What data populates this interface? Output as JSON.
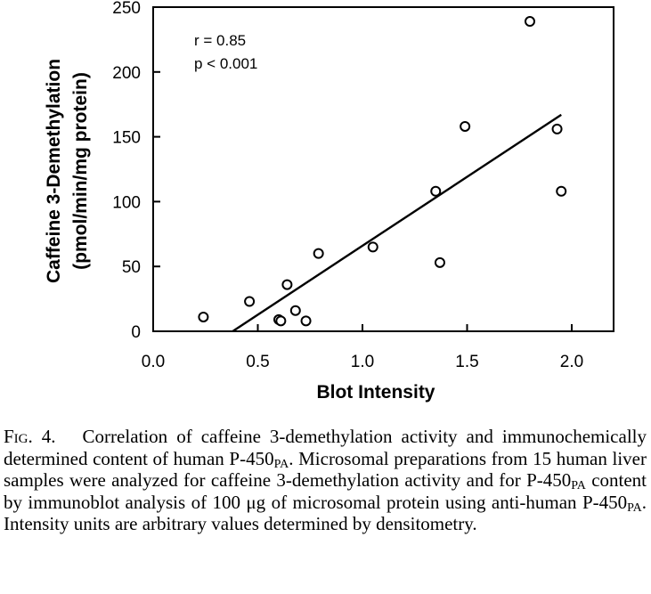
{
  "chart_data": {
    "type": "scatter",
    "xlabel": "Blot Intensity",
    "ylabel": [
      "Caffeine 3-Demethylation",
      "(pmol/min/mg protein)"
    ],
    "xlim": [
      0.0,
      2.2
    ],
    "ylim": [
      0,
      250
    ],
    "x_ticks": [
      "0.0",
      "0.5",
      "1.0",
      "1.5",
      "2.0"
    ],
    "x_tick_values": [
      0.0,
      0.5,
      1.0,
      1.5,
      2.0
    ],
    "y_ticks": [
      "0",
      "50",
      "100",
      "150",
      "200",
      "250"
    ],
    "y_tick_values": [
      0,
      50,
      100,
      150,
      200,
      250
    ],
    "grid": false,
    "marker": "open-circle",
    "points": [
      {
        "x": 0.24,
        "y": 11
      },
      {
        "x": 0.46,
        "y": 23
      },
      {
        "x": 0.6,
        "y": 9
      },
      {
        "x": 0.61,
        "y": 8
      },
      {
        "x": 0.64,
        "y": 36
      },
      {
        "x": 0.68,
        "y": 16
      },
      {
        "x": 0.73,
        "y": 8
      },
      {
        "x": 0.79,
        "y": 60
      },
      {
        "x": 1.05,
        "y": 65
      },
      {
        "x": 1.35,
        "y": 108
      },
      {
        "x": 1.37,
        "y": 53
      },
      {
        "x": 1.49,
        "y": 158
      },
      {
        "x": 1.8,
        "y": 239
      },
      {
        "x": 1.93,
        "y": 156
      },
      {
        "x": 1.95,
        "y": 108
      }
    ],
    "regression_line": {
      "x": [
        0.38,
        1.95
      ],
      "y": [
        0,
        167
      ]
    },
    "annotations": [
      "r =  0.85",
      "p < 0.001"
    ]
  },
  "caption": {
    "label": "Fig. 4.",
    "parts": [
      "Correlation of caffeine 3-demethylation activity and immunochemically determined content of human P-450",
      "PA",
      ". Microsomal preparations from 15 human liver samples were analyzed for caffeine 3-demethylation activity and for P-450",
      "PA",
      " content by immunoblot analysis of 100 μg of microsomal protein using anti-human P-450",
      "PA",
      ". Intensity units are arbitrary values determined by densitometry."
    ]
  }
}
